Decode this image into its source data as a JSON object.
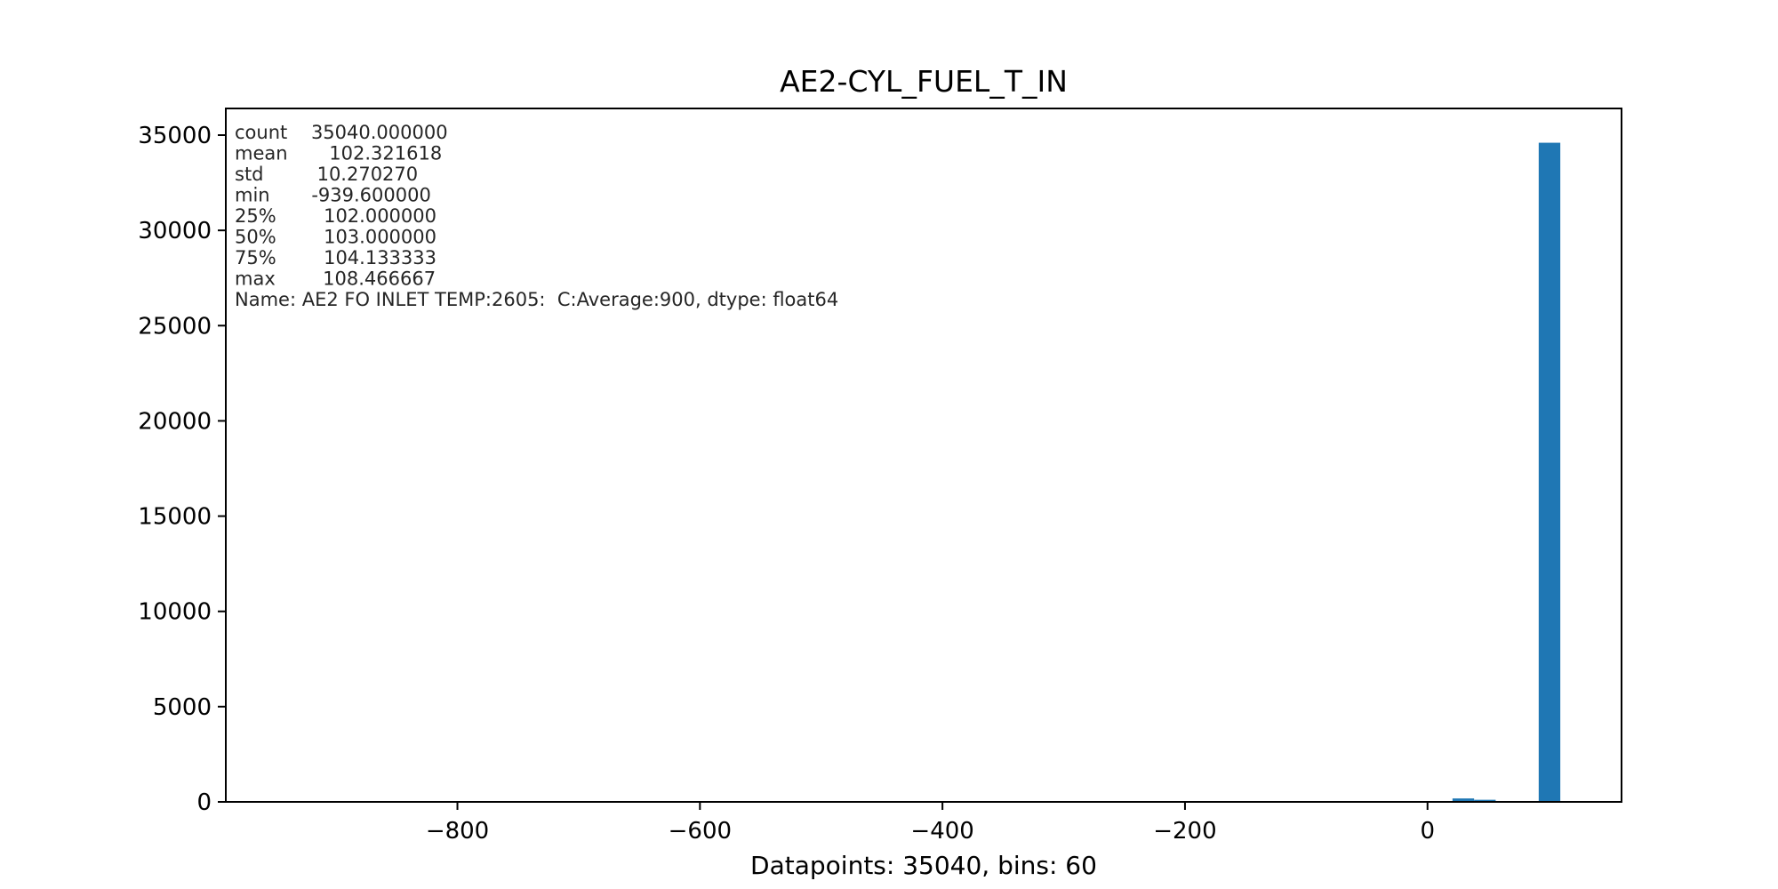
{
  "chart_data": {
    "type": "bar",
    "title": "AE2-CYL_FUEL_T_IN",
    "xlabel": "Datapoints: 35040, bins: 60",
    "ylabel": "",
    "xlim": [
      -991.0,
      160.0
    ],
    "ylim": [
      0,
      36400
    ],
    "x_ticks": [
      -800,
      -600,
      -400,
      -200,
      0
    ],
    "x_tick_labels": [
      "−800",
      "−600",
      "−400",
      "−200",
      "0"
    ],
    "y_ticks": [
      0,
      5000,
      10000,
      15000,
      20000,
      25000,
      30000,
      35000
    ],
    "y_tick_labels": [
      "0",
      "5000",
      "10000",
      "15000",
      "20000",
      "25000",
      "30000",
      "35000"
    ],
    "grid": false,
    "series": [
      {
        "bar_color": "#1f77b4",
        "bins": [
          {
            "x0": 20.6,
            "x1": 38.4,
            "count": 180
          },
          {
            "x0": 38.4,
            "x1": 56.2,
            "count": 110
          },
          {
            "x0": 91.7,
            "x1": 109.5,
            "count": 34600
          }
        ]
      }
    ],
    "stats_box": [
      "count    35040.000000",
      "mean       102.321618",
      "std         10.270270",
      "min       -939.600000",
      "25%        102.000000",
      "50%        103.000000",
      "75%        104.133333",
      "max        108.466667",
      "Name: AE2 FO INLET TEMP:2605:  C:Average:900, dtype: float64"
    ]
  }
}
